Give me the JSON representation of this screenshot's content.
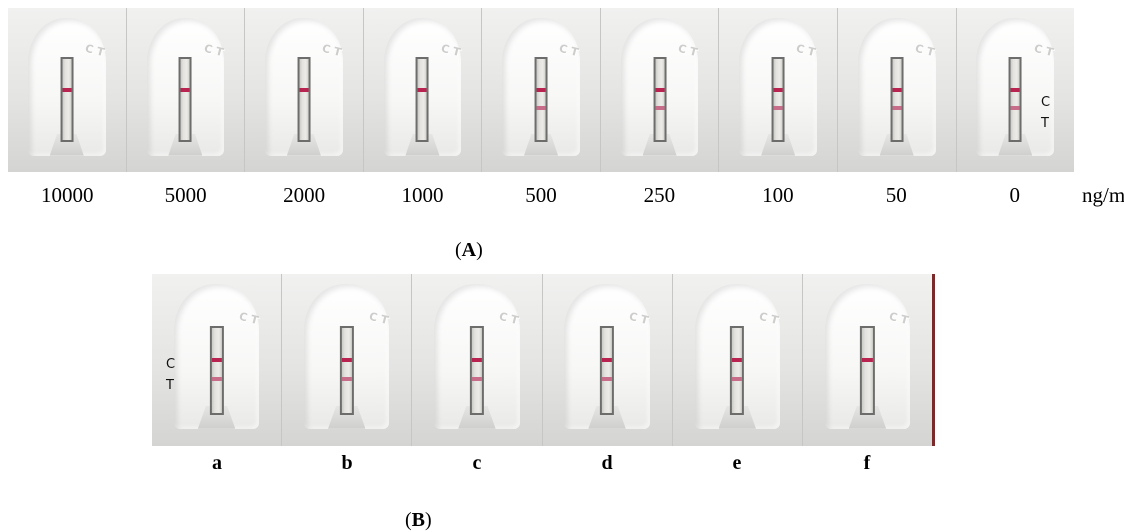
{
  "panel_a": {
    "label_open": "(",
    "label_letter": "A",
    "label_close": ")",
    "concentrations": [
      "10000",
      "5000",
      "2000",
      "1000",
      "500",
      "250",
      "100",
      "50",
      "0"
    ],
    "unit": "ng/mL",
    "annotation_c": "C",
    "annotation_t": "T",
    "molded_text": "C T",
    "test_line_visible": [
      false,
      false,
      false,
      false,
      true,
      true,
      true,
      true,
      true
    ]
  },
  "panel_b": {
    "label_open": "(",
    "label_letter": "B",
    "label_close": ")",
    "samples": [
      "a",
      "b",
      "c",
      "d",
      "e",
      "f"
    ],
    "annotation_c": "C",
    "annotation_t": "T",
    "test_line_visible": [
      true,
      true,
      true,
      true,
      true,
      false
    ]
  },
  "colors": {
    "control_line": "#b8244f",
    "test_line": "#c76d8a",
    "cassette": "#e8e8e6"
  }
}
